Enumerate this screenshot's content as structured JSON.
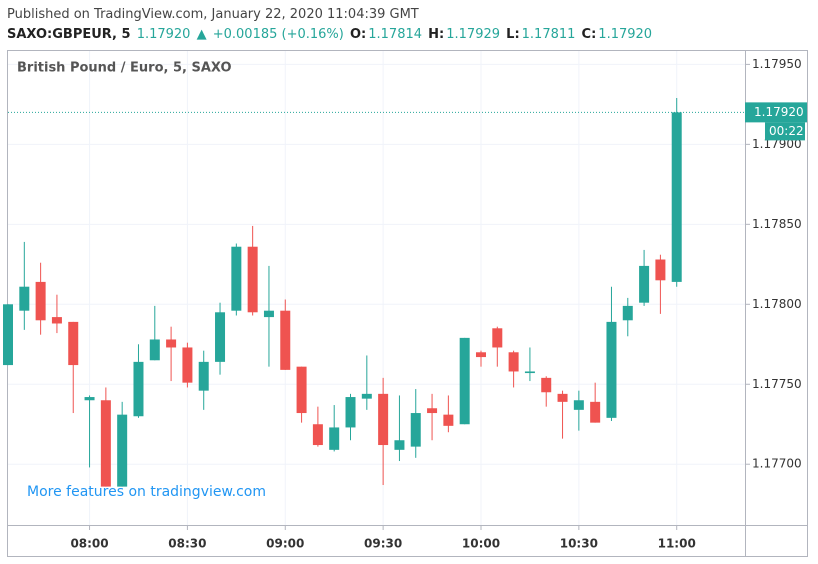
{
  "header": {
    "published": "Published on TradingView.com, January 22, 2020 11:04:39 GMT",
    "symbol": "SAXO:GBPEUR, 5",
    "price": "1.17920",
    "arrow": "▲",
    "change": "+0.00185 (+0.16%)",
    "o_label": "O:",
    "o": "1.17814",
    "h_label": "H:",
    "h": "1.17929",
    "l_label": "L:",
    "l": "1.17811",
    "c_label": "C:",
    "c": "1.17920",
    "countdown": "00:22",
    "link": "More features on tradingview.com"
  },
  "chart_data": {
    "type": "candlestick",
    "title": "British Pound / Euro, 5, SAXO",
    "categories": [
      null,
      null,
      null,
      null,
      null,
      "08:00",
      null,
      null,
      null,
      null,
      null,
      "08:30",
      null,
      null,
      null,
      null,
      null,
      "09:00",
      null,
      null,
      null,
      null,
      null,
      "09:30",
      null,
      null,
      null,
      null,
      null,
      "10:00",
      null,
      null,
      null,
      null,
      null,
      "10:30",
      null,
      null,
      null,
      null,
      null,
      "11:00"
    ],
    "open": [
      1.17762,
      1.17796,
      1.17814,
      1.17792,
      1.17789,
      1.1774,
      1.1774,
      1.17686,
      1.1773,
      1.17765,
      1.17778,
      1.17773,
      1.17746,
      1.17764,
      1.17796,
      1.17836,
      1.17792,
      1.17796,
      1.17761,
      1.17725,
      1.17709,
      1.17723,
      1.17741,
      1.17744,
      1.17709,
      1.17711,
      1.17735,
      1.17731,
      1.17725,
      1.1777,
      1.17785,
      1.1777,
      1.17757,
      1.17754,
      1.17744,
      1.17734,
      1.17739,
      1.17729,
      1.1779,
      1.17801,
      1.17828,
      1.17814
    ],
    "high": [
      1.178,
      1.17839,
      1.17826,
      1.17806,
      1.17789,
      1.17743,
      1.17748,
      1.17739,
      1.17775,
      1.17799,
      1.17786,
      1.17776,
      1.17771,
      1.17801,
      1.17838,
      1.17849,
      1.17824,
      1.17803,
      1.17761,
      1.17736,
      1.17737,
      1.17744,
      1.17768,
      1.17754,
      1.17743,
      1.17747,
      1.17744,
      1.17743,
      1.17779,
      1.17771,
      1.17786,
      1.17771,
      1.17773,
      1.17755,
      1.17746,
      1.17746,
      1.17751,
      1.17811,
      1.17804,
      1.17834,
      1.17831,
      1.17929
    ],
    "low": [
      1.17762,
      1.17784,
      1.17781,
      1.17782,
      1.17732,
      1.17698,
      1.17686,
      1.17686,
      1.17729,
      1.17765,
      1.17752,
      1.17748,
      1.17734,
      1.17756,
      1.17793,
      1.17793,
      1.17761,
      1.17759,
      1.17726,
      1.17711,
      1.17708,
      1.17715,
      1.17734,
      1.17687,
      1.17702,
      1.17704,
      1.17715,
      1.1772,
      1.17725,
      1.17761,
      1.17761,
      1.17748,
      1.17752,
      1.17736,
      1.17716,
      1.17721,
      1.17726,
      1.17727,
      1.1778,
      1.17799,
      1.17794,
      1.17811
    ],
    "close": [
      1.178,
      1.17811,
      1.1779,
      1.17788,
      1.17762,
      1.17742,
      1.17686,
      1.17731,
      1.17764,
      1.17778,
      1.17773,
      1.17751,
      1.17764,
      1.17795,
      1.17836,
      1.17795,
      1.17796,
      1.17759,
      1.17732,
      1.17712,
      1.17723,
      1.17742,
      1.17744,
      1.17712,
      1.17715,
      1.17732,
      1.17732,
      1.17724,
      1.17779,
      1.17767,
      1.17773,
      1.17758,
      1.17758,
      1.17745,
      1.17739,
      1.1774,
      1.17726,
      1.17789,
      1.17799,
      1.17824,
      1.17815,
      1.1792
    ],
    "up_color": "#26a69a",
    "down_color": "#ef5350",
    "ylim": [
      1.17662,
      1.17959
    ],
    "yticks": [
      {
        "value": 1.177,
        "label": "1.17700"
      },
      {
        "value": 1.1775,
        "label": "1.17750"
      },
      {
        "value": 1.178,
        "label": "1.17800"
      },
      {
        "value": 1.1785,
        "label": "1.17850"
      },
      {
        "value": 1.179,
        "label": "1.17900"
      },
      {
        "value": 1.1795,
        "label": "1.17950"
      }
    ],
    "grid": true
  }
}
